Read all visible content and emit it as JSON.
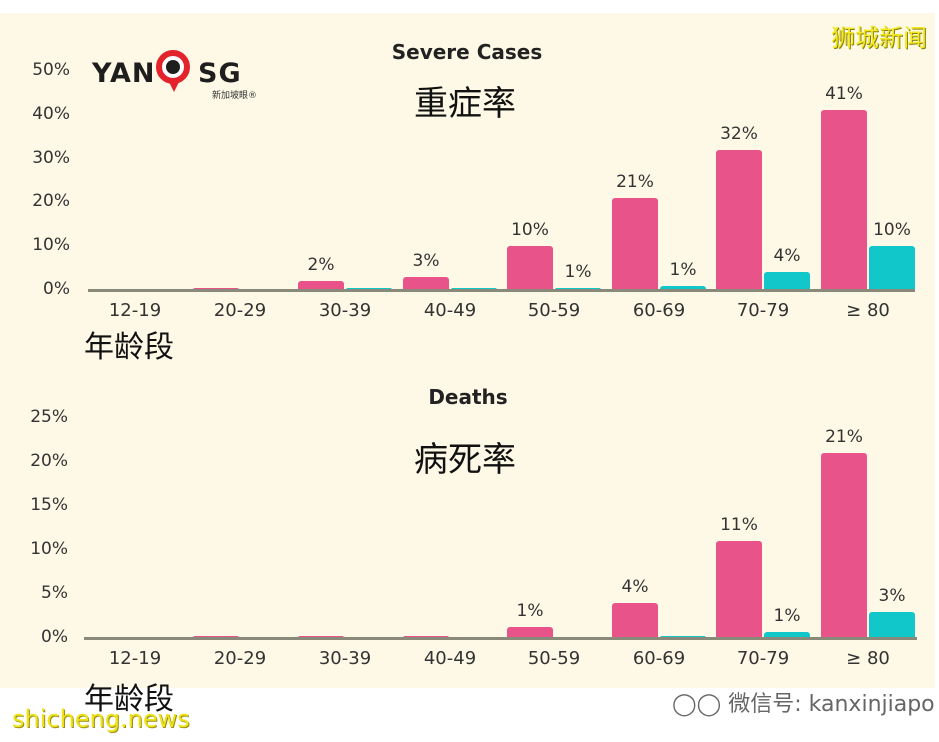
{
  "watermarks": {
    "top_right": "狮城新闻",
    "bottom_left": "shicheng.news",
    "wechat": "微信号: kanxinjiapo"
  },
  "logo": {
    "text_left": "YAN",
    "text_right": "SG",
    "subtitle": "新加坡眼®"
  },
  "colors": {
    "pink_series": "#e8548a",
    "teal_series": "#12c7c9",
    "background": "#fdf9e6"
  },
  "chart_data": [
    {
      "type": "bar",
      "title": "Severe Cases",
      "subtitle_zh": "重症率",
      "xlabel": "年龄段",
      "ylabel": "",
      "ylim": [
        0,
        50
      ],
      "yticks": [
        "0%",
        "10%",
        "20%",
        "30%",
        "40%",
        "50%"
      ],
      "categories": [
        "12-19",
        "20-29",
        "30-39",
        "40-49",
        "50-59",
        "60-69",
        "70-79",
        "≥ 80"
      ],
      "series": [
        {
          "name": "pink",
          "color": "#e8548a",
          "values": [
            0,
            0.5,
            2,
            3,
            10,
            21,
            32,
            41
          ],
          "labels": [
            "",
            "",
            "2%",
            "3%",
            "10%",
            "21%",
            "32%",
            "41%"
          ]
        },
        {
          "name": "teal",
          "color": "#12c7c9",
          "values": [
            0,
            0,
            0.1,
            0.1,
            0.5,
            1,
            4,
            10
          ],
          "labels": [
            "",
            "",
            "",
            "",
            "1%",
            "1%",
            "4%",
            "10%"
          ]
        }
      ],
      "grid": false,
      "legend": "none"
    },
    {
      "type": "bar",
      "title": "Deaths",
      "subtitle_zh": "病死率",
      "xlabel": "年龄段",
      "ylabel": "",
      "ylim": [
        0,
        25
      ],
      "yticks": [
        "0%",
        "5%",
        "10%",
        "15%",
        "20%",
        "25%"
      ],
      "categories": [
        "12-19",
        "20-29",
        "30-39",
        "40-49",
        "50-59",
        "60-69",
        "70-79",
        "≥ 80"
      ],
      "series": [
        {
          "name": "pink",
          "color": "#e8548a",
          "values": [
            0,
            0.2,
            0.2,
            0.2,
            1.3,
            4,
            11,
            21
          ],
          "labels": [
            "",
            "",
            "",
            "",
            "1%",
            "4%",
            "11%",
            "21%"
          ]
        },
        {
          "name": "teal",
          "color": "#12c7c9",
          "values": [
            0,
            0,
            0,
            0,
            0,
            0.2,
            0.7,
            3
          ],
          "labels": [
            "",
            "",
            "",
            "",
            "",
            "",
            "1%",
            "3%"
          ]
        }
      ],
      "grid": false,
      "legend": "none"
    }
  ]
}
